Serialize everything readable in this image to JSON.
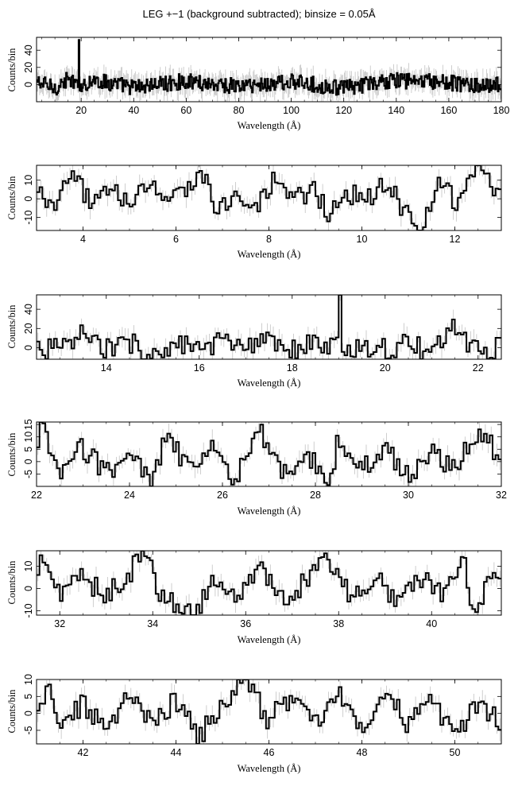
{
  "title": "LEG +−1 (background subtracted); binsize = 0.05Å",
  "chart_data": [
    {
      "type": "line",
      "title": "",
      "xlabel": "Wavelength (Å)",
      "ylabel": "Counts/bin",
      "xlim": [
        3,
        180
      ],
      "ylim": [
        -20,
        55
      ],
      "xticks": [
        20,
        40,
        60,
        80,
        100,
        120,
        140,
        160,
        180
      ],
      "yticks": [
        0,
        20,
        40
      ],
      "series": [
        {
          "points": [
            [
              3,
              3
            ],
            [
              10,
              -4
            ],
            [
              15,
              6
            ],
            [
              18.9,
              -3
            ],
            [
              19.0,
              52
            ],
            [
              19.05,
              -2
            ],
            [
              25,
              5
            ],
            [
              40,
              -3
            ],
            [
              60,
              4
            ],
            [
              80,
              -2
            ],
            [
              100,
              3
            ],
            [
              120,
              -4
            ],
            [
              140,
              5
            ],
            [
              160,
              2
            ],
            [
              176,
              -3
            ],
            [
              176.5,
              0
            ],
            [
              180,
              0
            ]
          ]
        }
      ]
    },
    {
      "type": "line",
      "title": "",
      "xlabel": "Wavelength (Å)",
      "ylabel": "Counts/bin",
      "xlim": [
        3,
        13
      ],
      "ylim": [
        -17,
        18
      ],
      "xticks": [
        4,
        6,
        8,
        10,
        12
      ],
      "yticks": [
        -10,
        0,
        10
      ],
      "series": [
        {
          "points": [
            [
              3,
              2
            ],
            [
              3.4,
              -3
            ],
            [
              3.8,
              12
            ],
            [
              4.2,
              -4
            ],
            [
              4.6,
              10
            ],
            [
              5.0,
              -6
            ],
            [
              5.4,
              8
            ],
            [
              5.8,
              -2
            ],
            [
              6.2,
              5
            ],
            [
              6.5,
              15
            ],
            [
              6.9,
              -4
            ],
            [
              7.3,
              3
            ],
            [
              7.7,
              -8
            ],
            [
              8.1,
              9
            ],
            [
              8.5,
              -3
            ],
            [
              8.9,
              6
            ],
            [
              9.3,
              -7
            ],
            [
              9.7,
              4
            ],
            [
              10.1,
              -2
            ],
            [
              10.5,
              8
            ],
            [
              10.9,
              -5
            ],
            [
              11.3,
              -17
            ],
            [
              11.7,
              9
            ],
            [
              12.1,
              -3
            ],
            [
              12.5,
              18
            ],
            [
              12.9,
              6
            ],
            [
              13,
              6
            ]
          ]
        }
      ]
    },
    {
      "type": "line",
      "title": "",
      "xlabel": "Wavelength (Å)",
      "ylabel": "Counts/bin",
      "xlim": [
        12.5,
        22.5
      ],
      "ylim": [
        -12,
        55
      ],
      "xticks": [
        14,
        16,
        18,
        20,
        22
      ],
      "yticks": [
        0,
        20,
        40
      ],
      "series": [
        {
          "points": [
            [
              12.5,
              2
            ],
            [
              13.0,
              -3
            ],
            [
              13.5,
              14
            ],
            [
              14.0,
              -2
            ],
            [
              14.5,
              6
            ],
            [
              15.0,
              -9
            ],
            [
              15.5,
              4
            ],
            [
              16.0,
              -4
            ],
            [
              16.5,
              8
            ],
            [
              17.0,
              -3
            ],
            [
              17.5,
              6
            ],
            [
              18.0,
              -2
            ],
            [
              18.5,
              3
            ],
            [
              18.95,
              -1
            ],
            [
              19.0,
              55
            ],
            [
              19.1,
              -6
            ],
            [
              19.5,
              3
            ],
            [
              20.0,
              -2
            ],
            [
              20.5,
              4
            ],
            [
              21.0,
              -6
            ],
            [
              21.5,
              22
            ],
            [
              22.0,
              -4
            ],
            [
              22.5,
              2
            ]
          ]
        }
      ]
    },
    {
      "type": "line",
      "title": "",
      "xlabel": "Wavelength (Å)",
      "ylabel": "Counts/bin",
      "xlim": [
        22,
        32
      ],
      "ylim": [
        -10,
        16
      ],
      "xticks": [
        22,
        24,
        26,
        28,
        30,
        32
      ],
      "yticks": [
        -5,
        0,
        5,
        10,
        15
      ],
      "series": [
        {
          "points": [
            [
              22,
              -2
            ],
            [
              22.1,
              16
            ],
            [
              22.5,
              -7
            ],
            [
              23.0,
              6
            ],
            [
              23.5,
              -4
            ],
            [
              24.0,
              3
            ],
            [
              24.5,
              -8
            ],
            [
              24.8,
              10
            ],
            [
              25.3,
              -3
            ],
            [
              25.8,
              5
            ],
            [
              26.3,
              -7
            ],
            [
              26.8,
              12
            ],
            [
              27.3,
              -5
            ],
            [
              27.8,
              4
            ],
            [
              28.3,
              -9
            ],
            [
              28.5,
              10
            ],
            [
              29.0,
              -3
            ],
            [
              29.5,
              5
            ],
            [
              30.0,
              -6
            ],
            [
              30.5,
              3
            ],
            [
              31.0,
              -2
            ],
            [
              31.5,
              13
            ],
            [
              32.0,
              2
            ]
          ]
        }
      ]
    },
    {
      "type": "line",
      "title": "",
      "xlabel": "Wavelength (Å)",
      "ylabel": "Counts/bin",
      "xlim": [
        31.5,
        41.5
      ],
      "ylim": [
        -12,
        17
      ],
      "xticks": [
        32,
        34,
        36,
        38,
        40
      ],
      "yticks": [
        -10,
        0,
        10
      ],
      "series": [
        {
          "points": [
            [
              31.5,
              -2
            ],
            [
              31.6,
              15
            ],
            [
              32.0,
              -4
            ],
            [
              32.5,
              5
            ],
            [
              33.0,
              -3
            ],
            [
              33.5,
              7
            ],
            [
              33.8,
              17
            ],
            [
              34.2,
              -3
            ],
            [
              34.9,
              -12
            ],
            [
              35.3,
              4
            ],
            [
              35.8,
              -5
            ],
            [
              36.3,
              8
            ],
            [
              36.8,
              -6
            ],
            [
              37.3,
              3
            ],
            [
              37.8,
              13
            ],
            [
              38.3,
              -4
            ],
            [
              38.8,
              6
            ],
            [
              39.3,
              -7
            ],
            [
              39.8,
              4
            ],
            [
              40.3,
              -3
            ],
            [
              40.7,
              11
            ],
            [
              40.9,
              -10
            ],
            [
              41.2,
              2
            ],
            [
              41.5,
              2
            ]
          ]
        }
      ]
    },
    {
      "type": "line",
      "title": "",
      "xlabel": "Wavelength (Å)",
      "ylabel": "Counts/bin",
      "xlim": [
        41,
        51
      ],
      "ylim": [
        -9,
        10
      ],
      "xticks": [
        42,
        44,
        46,
        48,
        50
      ],
      "yticks": [
        -5,
        0,
        5,
        10
      ],
      "series": [
        {
          "points": [
            [
              41,
              -3
            ],
            [
              41.2,
              8
            ],
            [
              41.6,
              -4
            ],
            [
              42.0,
              3
            ],
            [
              42.5,
              -6
            ],
            [
              43.0,
              5
            ],
            [
              43.5,
              -3
            ],
            [
              44.0,
              4
            ],
            [
              44.5,
              -7
            ],
            [
              45.0,
              3
            ],
            [
              45.5,
              10
            ],
            [
              46.0,
              -2
            ],
            [
              46.5,
              5
            ],
            [
              47.0,
              -4
            ],
            [
              47.5,
              6
            ],
            [
              48.0,
              -5
            ],
            [
              48.5,
              7
            ],
            [
              49.0,
              -3
            ],
            [
              49.5,
              4
            ],
            [
              50.0,
              -6
            ],
            [
              50.5,
              2
            ],
            [
              51.0,
              -3
            ]
          ]
        }
      ]
    }
  ]
}
